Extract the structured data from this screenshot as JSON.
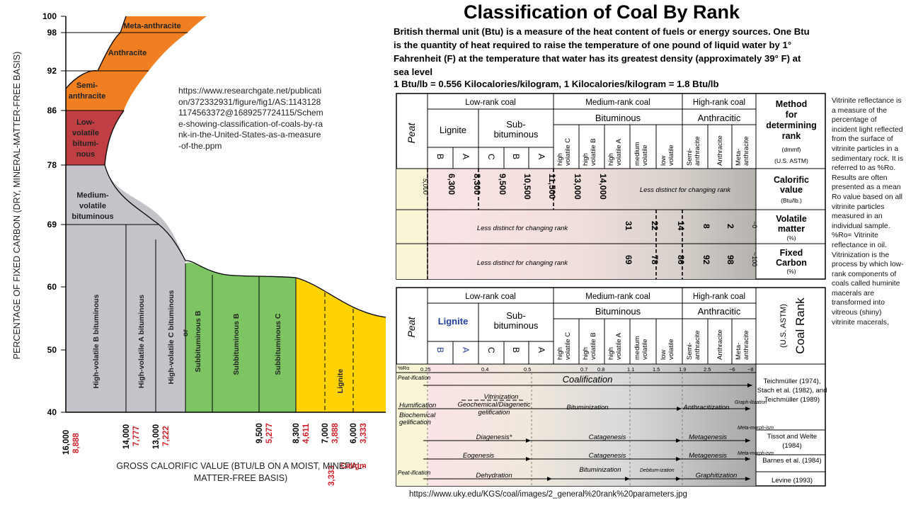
{
  "title": "Classification of Coal By Rank",
  "intro": "British thermal unit (Btu) is a measure of the heat content of fuels or energy sources. One Btu is the quantity of heat required to raise the temperature of one pound of liquid water by 1° Fahrenheit (F) at the temperature that water has its greatest density (approximately 39° F) at sea level",
  "formula": "1 Btu/lb = 0.556 Kilocalories/kilogram, 1 Kilocalories/kilogram = 1.8 Btu/lb",
  "source_left": "https://www.researchgate.net/publication/372332931/figure/fig1/AS:11431281174563372@1689257724115/Scheme-showing-classification-of-coals-by-rank-in-the-United-States-as-a-measure-of-the.ppm",
  "source_right": "https://www.uky.edu/KGS/coal/images/2_general%20rank%20parameters.jpg",
  "sidebar_note": "Vitrinite reflectance is a measure of the percentage of incident light reflected from the surface of vitrinite particles in a sedimentary rock. It is referred to as %Ro. Results are often presented as a mean Ro value based on all vitrinite particles measured in an individual sample. %Ro= Vitrinite reflectance in oil. Vitrinization is the process by which low-rank components of coals called huminite macerals are transformed into vitreous (shiny) vitrinite macerals,",
  "left_chart": {
    "y_axis_label": "PERCENTAGE OF FIXED CARBON (DRY, MINERAL-MATTER-FREE BASIS)",
    "x_axis_label": "GROSS CALORIFIC VALUE (BTU/LB ON A MOIST, MINERAL-MATTER-FREE BASIS)",
    "cal_unit": "Cal/gm",
    "y_ticks": [
      "100",
      "98",
      "92",
      "86",
      "78",
      "69",
      "60",
      "50",
      "40"
    ],
    "x_ticks": [
      {
        "btu": "16,000",
        "cal": "8,888"
      },
      {
        "btu": "14,000",
        "cal": "7,777"
      },
      {
        "btu": "13,000",
        "cal": "7,222"
      },
      {
        "btu": "9,500",
        "cal": "5,277"
      },
      {
        "btu": "8,300",
        "cal": "4,611"
      },
      {
        "btu": "7,000",
        "cal": "3,888"
      },
      {
        "btu": "6,000",
        "cal": "3,333"
      }
    ],
    "extra_cal": "3,333",
    "regions": {
      "meta": "Meta-anthracite",
      "anth": "Anthracite",
      "semi1": "Semi-",
      "semi2": "anthracite",
      "lv1": "Low-",
      "lv2": "volatile",
      "lv3": "bitumi-",
      "lv4": "nous",
      "mv1": "Medium-",
      "mv2": "volatile",
      "mv3": "bituminous",
      "hvb": "High-volatile B bituminous",
      "hva": "High-volatile A bituminous",
      "hvc": "High-volatile C bituminous",
      "or": "or",
      "subb": "Subbituminous B",
      "subb2": "Subbituminous B",
      "subc": "Subbituminous C",
      "lig": "Lignite"
    }
  },
  "table_top": {
    "peat": "Peat",
    "low_rank": "Low-rank coal",
    "medium_rank": "Medium-rank coal",
    "high_rank": "High-rank coal",
    "lignite": "Lignite",
    "sub1": "Sub-",
    "sub2": "bituminous",
    "bituminous": "Bituminous",
    "anthracitic": "Anthracitic",
    "bit_cols": [
      [
        "high",
        "volatile C"
      ],
      [
        "high",
        "volatile B"
      ],
      [
        "high",
        "volatile A"
      ],
      [
        "medium",
        "volatile"
      ],
      [
        "low",
        "volatile"
      ]
    ],
    "anth_cols": [
      [
        "Semi-",
        "anthracite"
      ],
      [
        "Anthracite",
        ""
      ],
      [
        "Meta-",
        "anthracite"
      ]
    ],
    "letters": [
      "B",
      "A",
      "C",
      "B",
      "A"
    ],
    "method": [
      "Method",
      "for",
      "determining",
      "rank"
    ],
    "method_sub1": "(dmmf)",
    "method_sub2": "(U.S. ASTM)",
    "calorific": [
      "Calorific",
      "value",
      "(Btu/lb.)"
    ],
    "volatile": [
      "Volatile",
      "matter",
      "(%)"
    ],
    "fixed": [
      "Fixed",
      "Carbon",
      "(%)"
    ],
    "calorific_values": [
      "5,000",
      "6,300",
      "8,300",
      "9,500",
      "10,500",
      "11,500",
      "13,000",
      "14,000"
    ],
    "volatile_values": [
      "31",
      "22",
      "14",
      "8",
      "2",
      "~0"
    ],
    "fixed_values": [
      "69",
      "78",
      "86",
      "92",
      "98",
      "~100"
    ],
    "less_distinct": "Less distinct for changing rank"
  },
  "table_bottom": {
    "lignite": "Lignite",
    "coal_rank": "Coal Rank",
    "astm": "(U.S. ASTM)",
    "ro_label": "%Ro",
    "ro_values": [
      "0.25",
      "0.4",
      "0.5",
      "0.7",
      "0.8",
      "1.1",
      "1.5",
      "1.9",
      "2.5",
      "~6",
      "~8"
    ],
    "processes": {
      "peatification": "Peat-ification",
      "coalification": "Coalification",
      "vitrinization": "Vitrinization",
      "humification": "Humification",
      "geochemical": "Geochemical/Diagenetic",
      "gelification": "gelification",
      "bituminization": "Bituminization",
      "anthracitization": "Anthracitization",
      "graphitization_short": "Graph-itization",
      "biochemical1": "Biochemical",
      "biochemical2": "gelification",
      "diagenesis": "Diagenesis*",
      "catagenesis": "Catagenesis",
      "metagenesis": "Metagenesis",
      "metamorphism": "Meta-morph-ism",
      "eogenesis": "Eogenesis",
      "dehydration": "Dehydration",
      "debituminization": "Debitum-ization",
      "graphitization": "Graphitization"
    },
    "refs": [
      "Teichmüller (1974), Stach et al. (1982), and Teichmüller (1989)",
      "Tissot and Welte (1984)",
      "Barnes et al. (1984)",
      "Levine (1993)"
    ]
  }
}
